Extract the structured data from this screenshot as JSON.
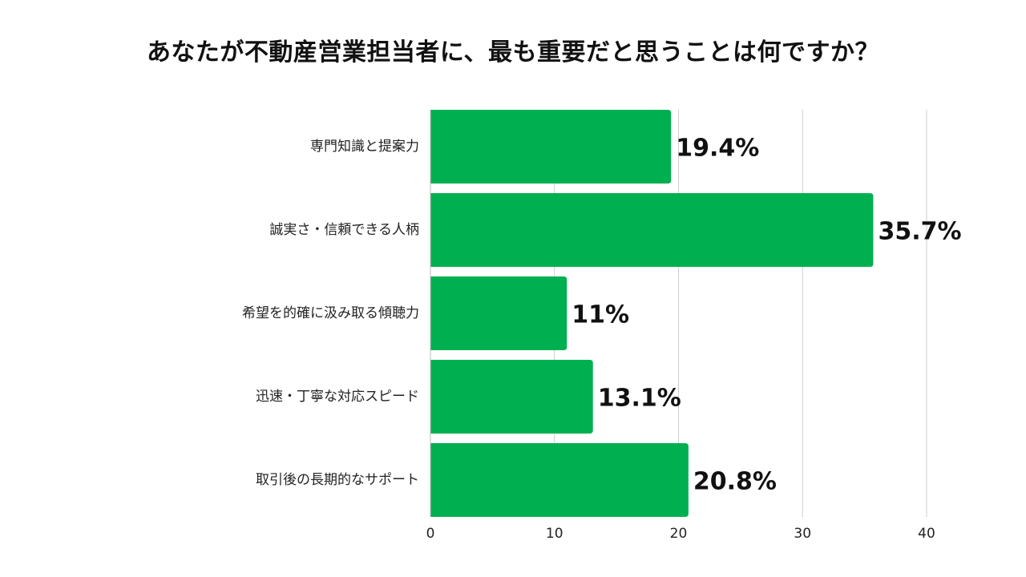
{
  "chart_data": {
    "type": "bar",
    "orientation": "horizontal",
    "title": "あなたが不動産営業担当者に、最も重要だと思うことは何ですか？",
    "categories": [
      "専門知識と提案力",
      "誠実さ・信頼できる人柄",
      "希望を的確に汲み取る傾聴力",
      "迅速・丁寧な対応スピード",
      "取引後の長期的なサポート"
    ],
    "values": [
      19.4,
      35.7,
      11,
      13.1,
      20.8
    ],
    "value_labels": [
      "19.4%",
      "35.7%",
      "11%",
      "13.1%",
      "20.8%"
    ],
    "xlim": [
      0,
      40
    ],
    "x_ticks": [
      0,
      10,
      20,
      30,
      40
    ],
    "grid": true,
    "legend": "none",
    "bar_color": "#00b050",
    "grid_color": "#cccccc"
  }
}
